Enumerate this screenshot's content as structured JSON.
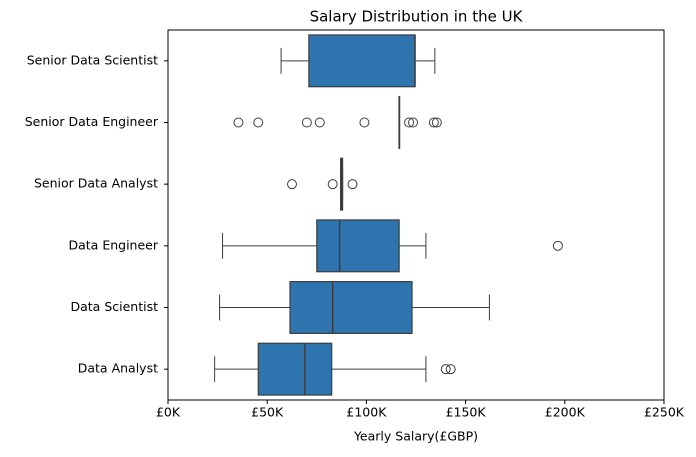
{
  "chart_data": {
    "type": "box",
    "title": "Salary Distribution in the UK",
    "x_label": "Yearly Salary(£GBP)",
    "categories": [
      "Senior Data Scientist",
      "Senior Data Engineer",
      "Senior Data Analyst",
      "Data Engineer",
      "Data Scientist",
      "Data Analyst"
    ],
    "color": "#2e75b0",
    "boxes": [
      {
        "low": 57000,
        "q1": 71000,
        "median": 124500,
        "q3": 124500,
        "high": 134500,
        "outliers": []
      },
      {
        "low": 116500,
        "q1": 116500,
        "median": 116500,
        "q3": 116500,
        "high": 116500,
        "outliers": [
          35500,
          45500,
          70000,
          76500,
          99000,
          121500,
          123500,
          134000,
          135500
        ]
      },
      {
        "low": 87000,
        "q1": 87000,
        "median": 87500,
        "q3": 88000,
        "high": 88000,
        "outliers": [
          62500,
          83000,
          93000
        ]
      },
      {
        "low": 27500,
        "q1": 75000,
        "median": 86500,
        "q3": 116500,
        "high": 130000,
        "outliers": [
          196500
        ]
      },
      {
        "low": 26000,
        "q1": 61500,
        "median": 83000,
        "q3": 123000,
        "high": 162000,
        "outliers": []
      },
      {
        "low": 23500,
        "q1": 45500,
        "median": 69000,
        "q3": 82500,
        "high": 130000,
        "outliers": [
          140000,
          142500
        ]
      }
    ],
    "xlim": [
      0,
      250000
    ],
    "xticks": [
      {
        "value": 0,
        "label": "£0K"
      },
      {
        "value": 50000,
        "label": "£50K"
      },
      {
        "value": 100000,
        "label": "£100K"
      },
      {
        "value": 150000,
        "label": "£150K"
      },
      {
        "value": 200000,
        "label": "£200K"
      },
      {
        "value": 250000,
        "label": "£250K"
      }
    ]
  }
}
